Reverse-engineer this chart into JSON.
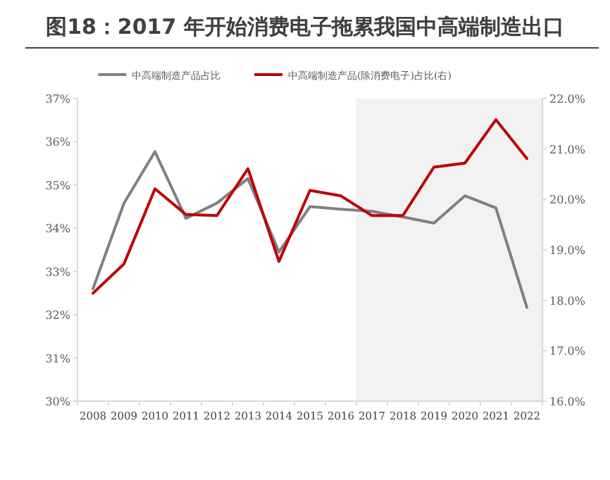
{
  "chart_data": {
    "type": "line",
    "title": "图18：2017 年开始消费电子拖累我国中高端制造出口",
    "categories": [
      "2008",
      "2009",
      "2010",
      "2011",
      "2012",
      "2013",
      "2014",
      "2015",
      "2016",
      "2017",
      "2018",
      "2019",
      "2020",
      "2021",
      "2022"
    ],
    "series": [
      {
        "name": "中高端制造产品占比",
        "color": "#808080",
        "values": [
          32.6,
          34.58,
          35.77,
          34.23,
          34.58,
          35.15,
          33.45,
          34.5,
          34.44,
          34.39,
          34.26,
          34.12,
          34.75,
          34.47,
          32.17
        ]
      },
      {
        "name": "中高端制造产品(除消费电子)占比(右)",
        "color": "#c00000",
        "axis": "y2",
        "values": [
          18.14,
          18.72,
          20.21,
          19.7,
          19.68,
          20.61,
          18.77,
          20.18,
          20.07,
          19.68,
          19.68,
          20.64,
          20.72,
          21.58,
          20.81
        ]
      }
    ],
    "ylim": [
      30,
      37
    ],
    "yticks": [
      {
        "value": 30,
        "label": "30%"
      },
      {
        "value": 31,
        "label": "31%"
      },
      {
        "value": 32,
        "label": "32%"
      },
      {
        "value": 33,
        "label": "33%"
      },
      {
        "value": 34,
        "label": "34%"
      },
      {
        "value": 35,
        "label": "35%"
      },
      {
        "value": 36,
        "label": "36%"
      },
      {
        "value": 37,
        "label": "37%"
      }
    ],
    "y2lim": [
      16,
      22
    ],
    "y2ticks": [
      {
        "value": 16,
        "label": "16.0%"
      },
      {
        "value": 17,
        "label": "17.0%"
      },
      {
        "value": 18,
        "label": "18.0%"
      },
      {
        "value": 19,
        "label": "19.0%"
      },
      {
        "value": 20,
        "label": "20.0%"
      },
      {
        "value": 21,
        "label": "21.0%"
      },
      {
        "value": 22,
        "label": "22.0%"
      }
    ],
    "bands": [
      {
        "axis": "x",
        "from": "2017",
        "to": "2022",
        "color": "#f2f2f2"
      }
    ],
    "legend": "top",
    "grid": false
  }
}
